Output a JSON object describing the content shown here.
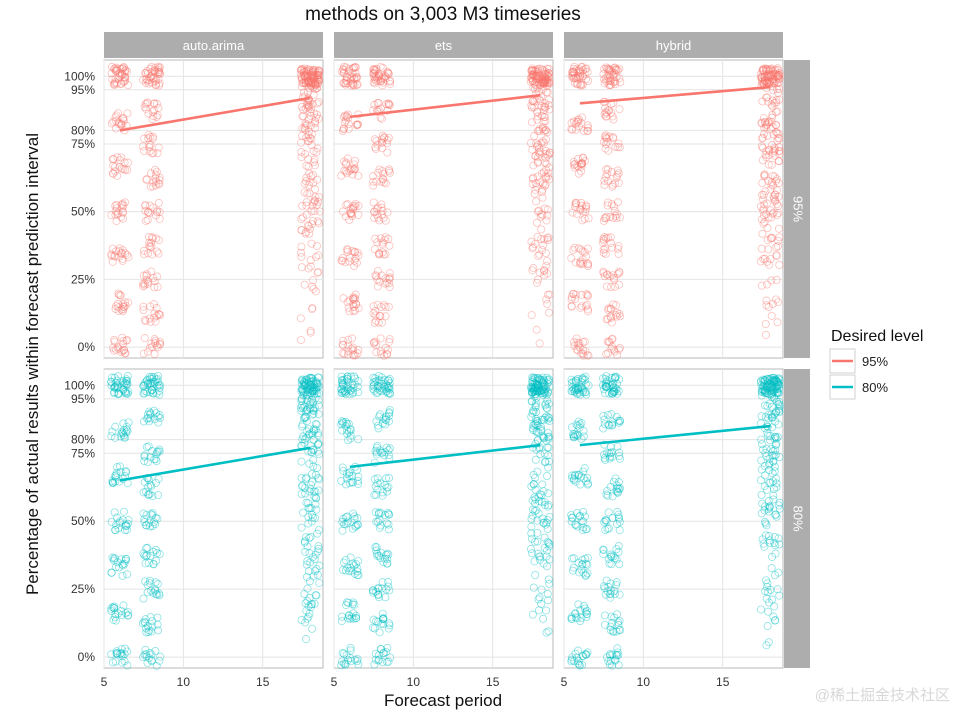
{
  "chart_data": {
    "type": "scatter",
    "title": "methods on 3,003 M3 timeseries",
    "xlabel": "Forecast period",
    "ylabel": "Percentage of actual results within forecast prediction interval",
    "xlim": [
      5,
      18.8
    ],
    "ylim": [
      -0.04,
      1.06
    ],
    "x_ticks": [
      "5",
      "10",
      "15"
    ],
    "y_ticks": [
      "0%",
      "25%",
      "50%",
      "75%",
      "80%",
      "95%",
      "100%"
    ],
    "y_tick_values": [
      0,
      0.25,
      0.5,
      0.75,
      0.8,
      0.95,
      1.0
    ],
    "x_positions": [
      6,
      8,
      18
    ],
    "methods": [
      "auto.arima",
      "ets",
      "hybrid"
    ],
    "levels": [
      "95%",
      "80%"
    ],
    "legend": {
      "title": "Desired level",
      "entries": [
        {
          "label": "95%",
          "color": "#F8766D"
        },
        {
          "label": "80%",
          "color": "#00BFC4"
        }
      ],
      "position": "right"
    },
    "series": [
      {
        "level": "95%",
        "method": "auto.arima",
        "color": "#F8766D",
        "trend": [
          [
            6,
            0.8
          ],
          [
            18,
            0.92
          ]
        ]
      },
      {
        "level": "95%",
        "method": "ets",
        "color": "#F8766D",
        "trend": [
          [
            6,
            0.85
          ],
          [
            18,
            0.93
          ]
        ]
      },
      {
        "level": "95%",
        "method": "hybrid",
        "color": "#F8766D",
        "trend": [
          [
            6,
            0.9
          ],
          [
            18,
            0.96
          ]
        ]
      },
      {
        "level": "80%",
        "method": "auto.arima",
        "color": "#00BFC4",
        "trend": [
          [
            6,
            0.65
          ],
          [
            18,
            0.77
          ]
        ]
      },
      {
        "level": "80%",
        "method": "ets",
        "color": "#00BFC4",
        "trend": [
          [
            6,
            0.7
          ],
          [
            18,
            0.78
          ]
        ]
      },
      {
        "level": "80%",
        "method": "hybrid",
        "color": "#00BFC4",
        "trend": [
          [
            6,
            0.78
          ],
          [
            18,
            0.85
          ]
        ]
      }
    ],
    "point_bands": {
      "early": [
        0,
        0.167,
        0.333,
        0.5,
        0.667,
        0.833,
        1.0
      ],
      "mid": [
        0,
        0.125,
        0.25,
        0.375,
        0.5,
        0.625,
        0.75,
        0.875,
        1.0
      ]
    },
    "grid": true
  },
  "watermark": "@稀土掘金技术社区"
}
